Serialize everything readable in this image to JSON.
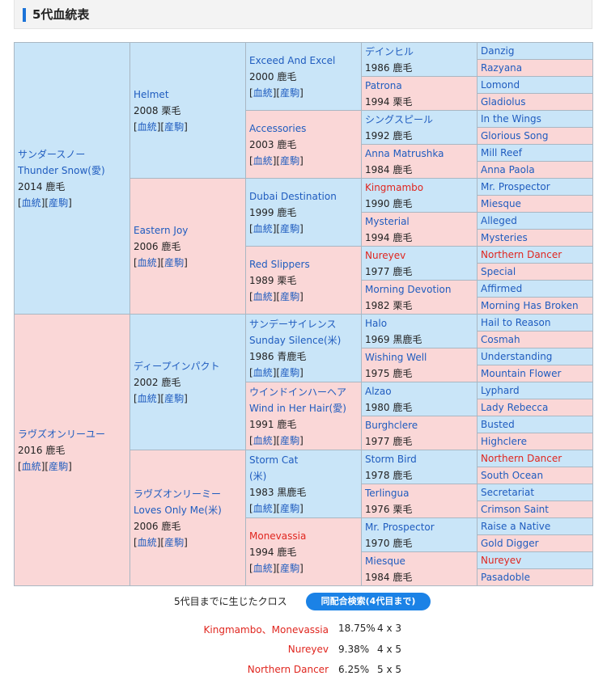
{
  "header": {
    "title": "5代血統表"
  },
  "links": {
    "pedigree": "血統",
    "progeny": "産駒",
    "lb": "[",
    "mid": "][",
    "rb": "]"
  },
  "g1": [
    {
      "name": "サンダースノー",
      "name2": "Thunder Snow(愛)",
      "info": "2014 鹿毛"
    },
    {
      "name": "ラヴズオンリーユー",
      "info": "2016 鹿毛"
    }
  ],
  "g2": [
    {
      "name": "Helmet",
      "info": "2008 栗毛"
    },
    {
      "name": "Eastern Joy",
      "info": "2006 鹿毛"
    },
    {
      "name": "ディープインパクト",
      "info": "2002 鹿毛"
    },
    {
      "name": "ラヴズオンリーミー",
      "name2": "Loves Only Me(米)",
      "info": "2006 鹿毛"
    }
  ],
  "g3": [
    {
      "name": "Exceed And Excel",
      "info": "2000 鹿毛"
    },
    {
      "name": "Accessories",
      "info": "2003 鹿毛"
    },
    {
      "name": "Dubai Destination",
      "info": "1999 鹿毛"
    },
    {
      "name": "Red Slippers",
      "info": "1989 栗毛"
    },
    {
      "name": "サンデーサイレンス",
      "name2": "Sunday Silence(米)",
      "info": "1986 青鹿毛"
    },
    {
      "name": "ウインドインハーヘア",
      "name2": "Wind in Her Hair(愛)",
      "info": "1991 鹿毛"
    },
    {
      "name": "Storm Cat",
      "name2": "(米)",
      "info": "1983 黒鹿毛"
    },
    {
      "name": "Monevassia",
      "info": "1994 鹿毛"
    }
  ],
  "g4": [
    {
      "name": "デインヒル",
      "info": "1986 鹿毛"
    },
    {
      "name": "Patrona",
      "info": "1994 栗毛"
    },
    {
      "name": "シングスピール",
      "info": "1992 鹿毛"
    },
    {
      "name": "Anna Matrushka",
      "info": "1984 鹿毛"
    },
    {
      "name": "Kingmambo",
      "info": "1990 鹿毛"
    },
    {
      "name": "Mysterial",
      "info": "1994 鹿毛"
    },
    {
      "name": "Nureyev",
      "info": "1977 鹿毛"
    },
    {
      "name": "Morning Devotion",
      "info": "1982 栗毛"
    },
    {
      "name": "Halo",
      "info": "1969 黒鹿毛"
    },
    {
      "name": "Wishing Well",
      "info": "1975 鹿毛"
    },
    {
      "name": "Alzao",
      "info": "1980 鹿毛"
    },
    {
      "name": "Burghclere",
      "info": "1977 鹿毛"
    },
    {
      "name": "Storm Bird",
      "info": "1978 鹿毛"
    },
    {
      "name": "Terlingua",
      "info": "1976 栗毛"
    },
    {
      "name": "Mr. Prospector",
      "info": "1970 鹿毛"
    },
    {
      "name": "Miesque",
      "info": "1984 鹿毛"
    }
  ],
  "g5": [
    "Danzig",
    "Razyana",
    "Lomond",
    "Gladiolus",
    "In the Wings",
    "Glorious Song",
    "Mill Reef",
    "Anna Paola",
    "Mr. Prospector",
    "Miesque",
    "Alleged",
    "Mysteries",
    "Northern Dancer",
    "Special",
    "Affirmed",
    "Morning Has Broken",
    "Hail to Reason",
    "Cosmah",
    "Understanding",
    "Mountain Flower",
    "Lyphard",
    "Lady Rebecca",
    "Busted",
    "Highclere",
    "Northern Dancer",
    "South Ocean",
    "Secretariat",
    "Crimson Saint",
    "Raise a Native",
    "Gold Digger",
    "Nureyev",
    "Pasadoble"
  ],
  "cross": {
    "label": "5代目までに生じたクロス",
    "button": "同配合検索(4代目まで)",
    "rows": [
      {
        "name": "Kingmambo、Monevassia",
        "pct": "18.75%",
        "gen": "4 x 3"
      },
      {
        "name": "Nureyev",
        "pct": "9.38%",
        "gen": "4 x 5"
      },
      {
        "name": "Northern Dancer",
        "pct": "6.25%",
        "gen": "5 x 5"
      }
    ]
  }
}
